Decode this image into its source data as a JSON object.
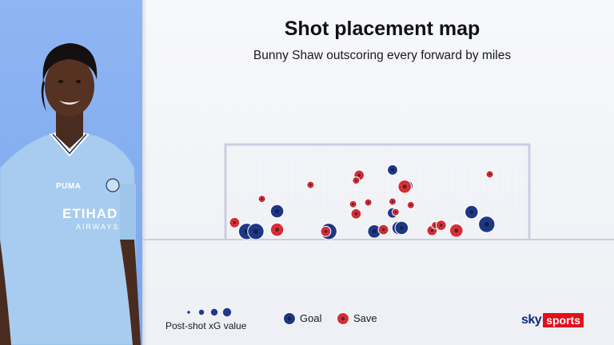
{
  "header": {
    "title": "Shot placement map",
    "subtitle": "Bunny Shaw outscoring every forward by miles"
  },
  "player_panel": {
    "kit_sponsor": "ETIHAD",
    "kit_sponsor_sub": "AIRWAYS",
    "kit_brand": "PUMA"
  },
  "legend": {
    "xg_label": "Post-shot xG value",
    "goal_label": "Goal",
    "save_label": "Save"
  },
  "brand": {
    "sky": "sky",
    "sports": "sports"
  },
  "colors": {
    "goal": "#1f3a8a",
    "save": "#e0323a",
    "panel": "#8fb6f3",
    "frame": "#c9cfdf",
    "sky_red": "#e3101c"
  },
  "chart_data": {
    "type": "scatter",
    "title": "Shot placement map",
    "subtitle": "Bunny Shaw outscoring every forward by miles",
    "xlim": [
      0,
      1
    ],
    "ylim": [
      0,
      1
    ],
    "size_encoding": "Post-shot xG value",
    "series": [
      {
        "name": "Goal",
        "points": [
          {
            "x": 0.07,
            "y": 0.02,
            "xg": 4
          },
          {
            "x": 0.1,
            "y": 0.02,
            "xg": 4
          },
          {
            "x": 0.17,
            "y": 0.25,
            "xg": 3
          },
          {
            "x": 0.34,
            "y": 0.02,
            "xg": 4
          },
          {
            "x": 0.49,
            "y": 0.02,
            "xg": 3
          },
          {
            "x": 0.55,
            "y": 0.72,
            "xg": 2
          },
          {
            "x": 0.55,
            "y": 0.23,
            "xg": 2
          },
          {
            "x": 0.57,
            "y": 0.06,
            "xg": 3
          },
          {
            "x": 0.58,
            "y": 0.06,
            "xg": 3
          },
          {
            "x": 0.6,
            "y": 0.54,
            "xg": 2
          },
          {
            "x": 0.81,
            "y": 0.24,
            "xg": 3
          },
          {
            "x": 0.86,
            "y": 0.1,
            "xg": 4
          }
        ]
      },
      {
        "name": "Save",
        "points": [
          {
            "x": 0.03,
            "y": 0.12,
            "xg": 2
          },
          {
            "x": 0.12,
            "y": 0.39,
            "xg": 1
          },
          {
            "x": 0.17,
            "y": 0.04,
            "xg": 3
          },
          {
            "x": 0.28,
            "y": 0.55,
            "xg": 1
          },
          {
            "x": 0.33,
            "y": 0.02,
            "xg": 2
          },
          {
            "x": 0.42,
            "y": 0.33,
            "xg": 1
          },
          {
            "x": 0.43,
            "y": 0.22,
            "xg": 2
          },
          {
            "x": 0.44,
            "y": 0.66,
            "xg": 2
          },
          {
            "x": 0.43,
            "y": 0.6,
            "xg": 1
          },
          {
            "x": 0.47,
            "y": 0.35,
            "xg": 1
          },
          {
            "x": 0.52,
            "y": 0.04,
            "xg": 2
          },
          {
            "x": 0.55,
            "y": 0.36,
            "xg": 1
          },
          {
            "x": 0.56,
            "y": 0.24,
            "xg": 1
          },
          {
            "x": 0.59,
            "y": 0.53,
            "xg": 3
          },
          {
            "x": 0.61,
            "y": 0.32,
            "xg": 1
          },
          {
            "x": 0.68,
            "y": 0.03,
            "xg": 2
          },
          {
            "x": 0.69,
            "y": 0.09,
            "xg": 1
          },
          {
            "x": 0.71,
            "y": 0.09,
            "xg": 2
          },
          {
            "x": 0.76,
            "y": 0.03,
            "xg": 3
          },
          {
            "x": 0.87,
            "y": 0.67,
            "xg": 1
          }
        ]
      }
    ],
    "legend_sizes": [
      1,
      2,
      3,
      4
    ]
  }
}
